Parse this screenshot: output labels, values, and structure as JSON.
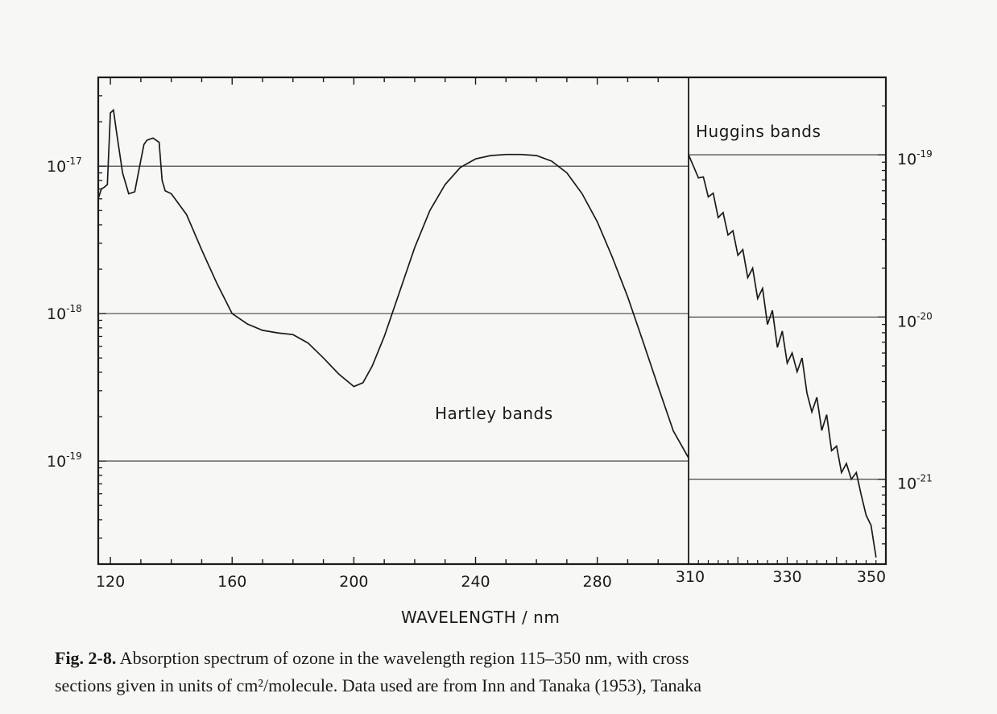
{
  "chart_data": {
    "type": "line",
    "xlabel": "WAVELENGTH / nm",
    "x_ticks_left": [
      "120",
      "160",
      "200",
      "240",
      "280"
    ],
    "x_ticks_right": [
      "310",
      "330",
      "350"
    ],
    "y_ticks_left": [
      {
        "mantissa": "10",
        "exponent": "-17",
        "value": 1e-17
      },
      {
        "mantissa": "10",
        "exponent": "-18",
        "value": 1e-18
      },
      {
        "mantissa": "10",
        "exponent": "-19",
        "value": 1e-19
      }
    ],
    "y_ticks_right": [
      {
        "mantissa": "10",
        "exponent": "-19",
        "value": 1e-19
      },
      {
        "mantissa": "10",
        "exponent": "-20",
        "value": 1e-20
      },
      {
        "mantissa": "10",
        "exponent": "-21",
        "value": 1e-21
      }
    ],
    "y_scale": "log",
    "annotations": {
      "hartley": "Hartley bands",
      "huggins": "Huggins bands"
    },
    "grid": "horizontal at decades",
    "panels": [
      {
        "name": "Hartley",
        "xlim": [
          116,
          310
        ],
        "ylim": [
          2e-20,
          4e-17
        ],
        "series": {
          "x": [
            116,
            117,
            118,
            119,
            120,
            121,
            122,
            124,
            126,
            128,
            130,
            131,
            132,
            134,
            136,
            137,
            138,
            140,
            145,
            150,
            155,
            160,
            165,
            170,
            175,
            180,
            185,
            190,
            195,
            200,
            203,
            206,
            210,
            215,
            220,
            225,
            230,
            235,
            240,
            245,
            250,
            255,
            260,
            265,
            270,
            275,
            280,
            285,
            290,
            295,
            300,
            305,
            310
          ],
          "y": [
            6e-18,
            7e-18,
            7.2e-18,
            7.5e-18,
            2.3e-17,
            2.4e-17,
            1.7e-17,
            9e-18,
            6.5e-18,
            6.7e-18,
            1.1e-17,
            1.4e-17,
            1.5e-17,
            1.55e-17,
            1.45e-17,
            8e-18,
            6.8e-18,
            6.5e-18,
            4.7e-18,
            2.7e-18,
            1.6e-18,
            1e-18,
            8.5e-19,
            7.7e-19,
            7.4e-19,
            7.2e-19,
            6.3e-19,
            5e-19,
            3.9e-19,
            3.2e-19,
            3.4e-19,
            4.4e-19,
            7e-19,
            1.4e-18,
            2.8e-18,
            5e-18,
            7.5e-18,
            9.8e-18,
            1.12e-17,
            1.18e-17,
            1.2e-17,
            1.2e-17,
            1.18e-17,
            1.08e-17,
            9e-18,
            6.5e-18,
            4.2e-18,
            2.4e-18,
            1.3e-18,
            6.5e-19,
            3.2e-19,
            1.6e-19,
            1.05e-19
          ]
        }
      },
      {
        "name": "Huggins",
        "xlim": [
          310,
          350
        ],
        "ylim": [
          3e-22,
          3e-19
        ],
        "series": {
          "x": [
            310,
            311,
            312,
            313,
            314,
            315,
            316,
            317,
            318,
            319,
            320,
            321,
            322,
            323,
            324,
            325,
            326,
            327,
            328,
            329,
            330,
            331,
            332,
            333,
            334,
            335,
            336,
            337,
            338,
            339,
            340,
            341,
            342,
            343,
            344,
            345,
            346,
            347,
            348
          ],
          "y": [
            1e-19,
            8.5e-20,
            7.2e-20,
            7.3e-20,
            5.5e-20,
            5.8e-20,
            4.1e-20,
            4.4e-20,
            3.2e-20,
            3.4e-20,
            2.4e-20,
            2.6e-20,
            1.75e-20,
            2e-20,
            1.3e-20,
            1.5e-20,
            9e-21,
            1.1e-20,
            6.5e-21,
            8.2e-21,
            5.2e-21,
            6e-21,
            4.6e-21,
            5.6e-21,
            3.4e-21,
            2.6e-21,
            3.2e-21,
            2e-21,
            2.5e-21,
            1.5e-21,
            1.6e-21,
            1.1e-21,
            1.25e-21,
            1e-21,
            1.1e-21,
            8e-22,
            6e-22,
            5.2e-22,
            3.3e-22
          ]
        }
      }
    ]
  },
  "caption": {
    "fig_label": "Fig. 2-8.",
    "line1_text": " Absorption spectrum of ozone in the wavelength region 115–350 nm, with cross",
    "line2_text": "sections given in units of cm²/molecule. Data used are from Inn and Tanaka (1953), Tanaka"
  }
}
